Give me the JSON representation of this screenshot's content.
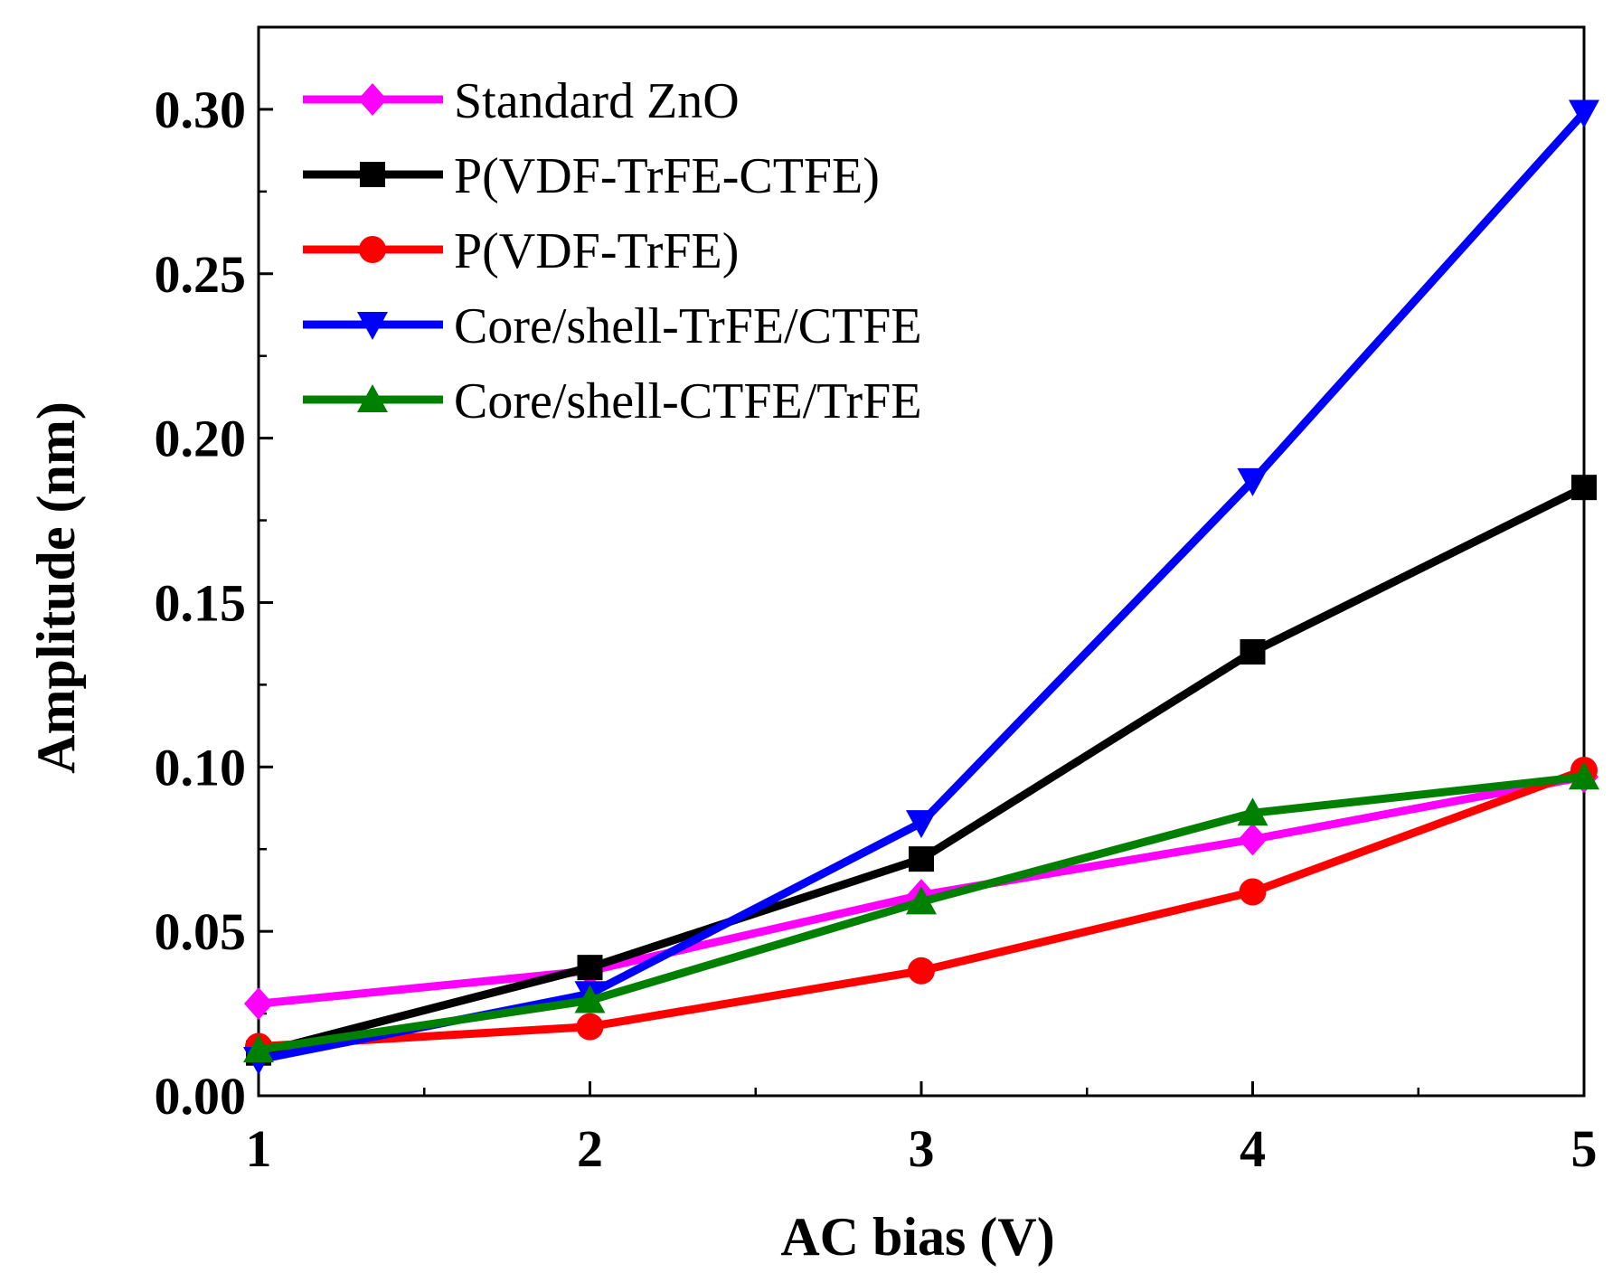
{
  "chart_data": {
    "type": "line",
    "xlabel": "AC bias (V)",
    "ylabel": "Amplitude (nm)",
    "xlim": [
      1,
      5
    ],
    "ylim": [
      0,
      0.325
    ],
    "x_ticks": [
      1,
      2,
      3,
      4,
      5
    ],
    "x_tick_labels": [
      "1",
      "2",
      "3",
      "4",
      "5"
    ],
    "y_ticks": [
      0,
      0.05,
      0.1,
      0.15,
      0.2,
      0.25,
      0.3
    ],
    "y_tick_labels": [
      "0.00",
      "0.05",
      "0.10",
      "0.15",
      "0.20",
      "0.25",
      "0.30"
    ],
    "grid": false,
    "legend_position": "top-left",
    "x": [
      1,
      2,
      3,
      4,
      5
    ],
    "series": [
      {
        "name": "Standard ZnO",
        "color": "#ff00ff",
        "marker": "diamond",
        "values": [
          0.028,
          0.038,
          0.061,
          0.078,
          0.097
        ]
      },
      {
        "name": "P(VDF-TrFE-CTFE)",
        "color": "#000000",
        "marker": "square",
        "values": [
          0.013,
          0.039,
          0.072,
          0.135,
          0.185
        ]
      },
      {
        "name": "P(VDF-TrFE)",
        "color": "#ff0000",
        "marker": "circle",
        "values": [
          0.015,
          0.021,
          0.038,
          0.062,
          0.099
        ]
      },
      {
        "name": "Core/shell-TrFE/CTFE",
        "color": "#0000ff",
        "marker": "triangle-down",
        "values": [
          0.011,
          0.031,
          0.083,
          0.187,
          0.299
        ]
      },
      {
        "name": "Core/shell-CTFE/TrFE",
        "color": "#008000",
        "marker": "triangle-up",
        "values": [
          0.014,
          0.029,
          0.059,
          0.086,
          0.097
        ]
      }
    ]
  }
}
